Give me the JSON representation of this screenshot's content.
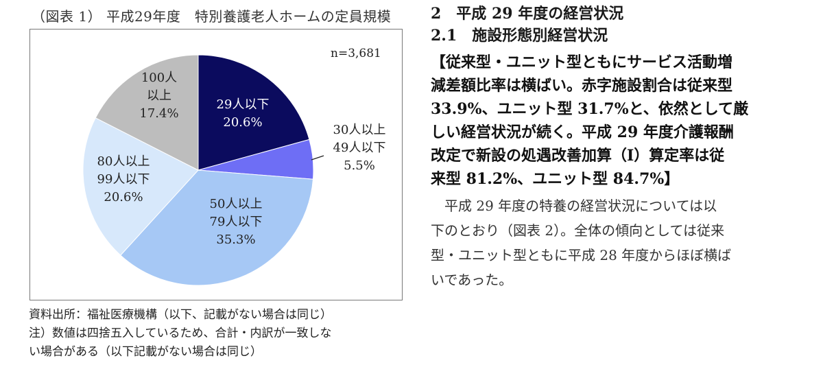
{
  "figure": {
    "title": "（図表 1） 平成29年度　特別養護老人ホームの定員規模",
    "n_label": "n=3,681",
    "source_lines": [
      "資料出所：福祉医療機構（以下、記載がない場合は同じ）",
      "注）数値は四捨五入しているため、合計・内訳が一致しな",
      "い場合がある（以下記載がない場合は同じ）"
    ]
  },
  "chart_data": {
    "type": "pie",
    "n": 3681,
    "start_angle": "12 o'clock",
    "direction": "clockwise",
    "slices": [
      {
        "label_lines": [
          "29人以下",
          "20.6%"
        ],
        "value": 20.6,
        "color": "#0b0b5e",
        "label_color": "#ffffff"
      },
      {
        "label_lines": [
          "30人以上",
          "49人以下",
          "5.5%"
        ],
        "value": 5.5,
        "color": "#6e6ef5",
        "label_color": "#222222"
      },
      {
        "label_lines": [
          "50人以上",
          "79人以下",
          "35.3%"
        ],
        "value": 35.3,
        "color": "#a6c8f5",
        "label_color": "#222222"
      },
      {
        "label_lines": [
          "80人以上",
          "99人以下",
          "20.6%"
        ],
        "value": 20.6,
        "color": "#d7e8fb",
        "label_color": "#222222"
      },
      {
        "label_lines": [
          "100人",
          "以上",
          "17.4%"
        ],
        "value": 17.4,
        "color": "#bdbdbd",
        "label_color": "#222222"
      }
    ]
  },
  "section": {
    "heading": "2　平成 29 年度の経営状況",
    "subheading": "2.1　施設形態別経営状況"
  },
  "summary_lines": [
    "【従来型・ユニット型ともにサービス活動増",
    "減差額比率は横ばい。赤字施設割合は従来型",
    "33.9%、ユニット型 31.7%と、依然として厳",
    "しい経営状況が続く。平成 29 年度介護報酬",
    "改定で新設の処遇改善加算（Ⅰ）算定率は従",
    "来型 81.2%、ユニット型 84.7%】"
  ],
  "body_lines": [
    "　平成 29 年度の特養の経営状況については以",
    "下のとおり（図表 2）。全体の傾向としては従来",
    "型・ユニット型ともに平成 28 年度からほぼ横ば",
    "いであった。"
  ]
}
